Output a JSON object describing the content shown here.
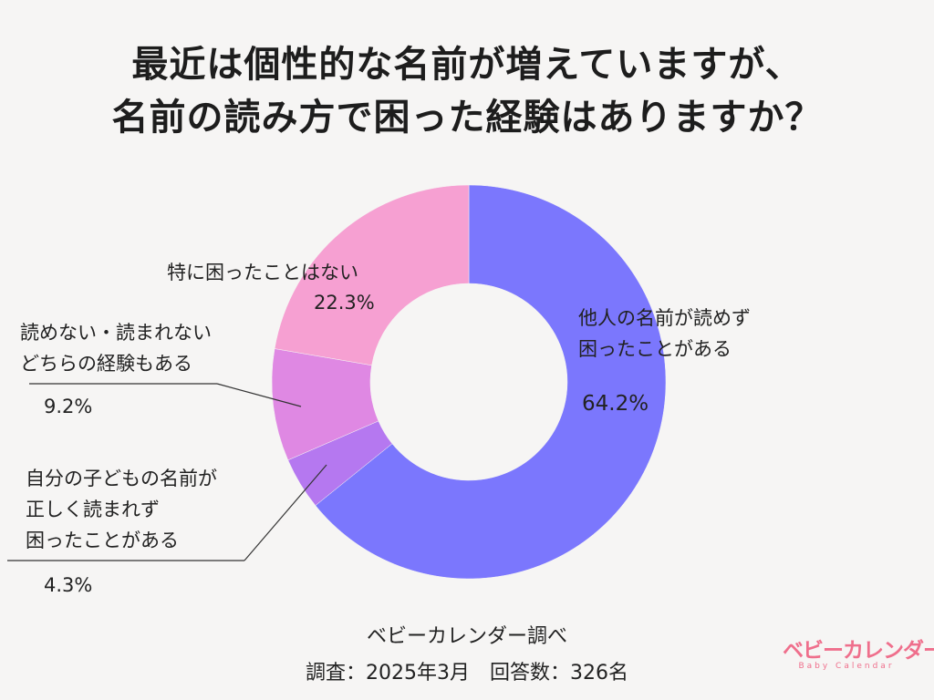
{
  "title": {
    "line1": "最近は個性的な名前が増えていますが、",
    "line2": "名前の読み方で困った経験はありますか？"
  },
  "chart_data": {
    "type": "pie",
    "donut": true,
    "slices": [
      {
        "label": "他人の名前が読めず困ったことがある",
        "value": 64.2,
        "value_label": "64.2%",
        "color": "#7b77fd"
      },
      {
        "label": "自分の子どもの名前が正しく読まれず困ったことがある",
        "value": 4.3,
        "value_label": "4.3%",
        "color": "#b578f0"
      },
      {
        "label": "読めない・読まれないどちらの経験もある",
        "value": 9.2,
        "value_label": "9.2%",
        "color": "#df88e3"
      },
      {
        "label": "特に困ったことはない",
        "value": 22.3,
        "value_label": "22.3%",
        "color": "#f6a0d2"
      }
    ]
  },
  "labels": {
    "s0_line1": "他人の名前が読めず",
    "s0_line2": "困ったことがある",
    "s1_line1": "自分の子どもの名前が",
    "s1_line2": "正しく読まれず",
    "s1_line3": "困ったことがある",
    "s2_line1": "読めない・読まれない",
    "s2_line2": "どちらの経験もある",
    "s3_line1": "特に困ったことはない"
  },
  "source": {
    "line1": "ベビーカレンダー調べ",
    "line2": "調査：2025年3月　回答数：326名"
  },
  "logo": {
    "main": "ベビーカレンダー",
    "sub": "Baby Calendar",
    "color": "#ef6f8c"
  }
}
